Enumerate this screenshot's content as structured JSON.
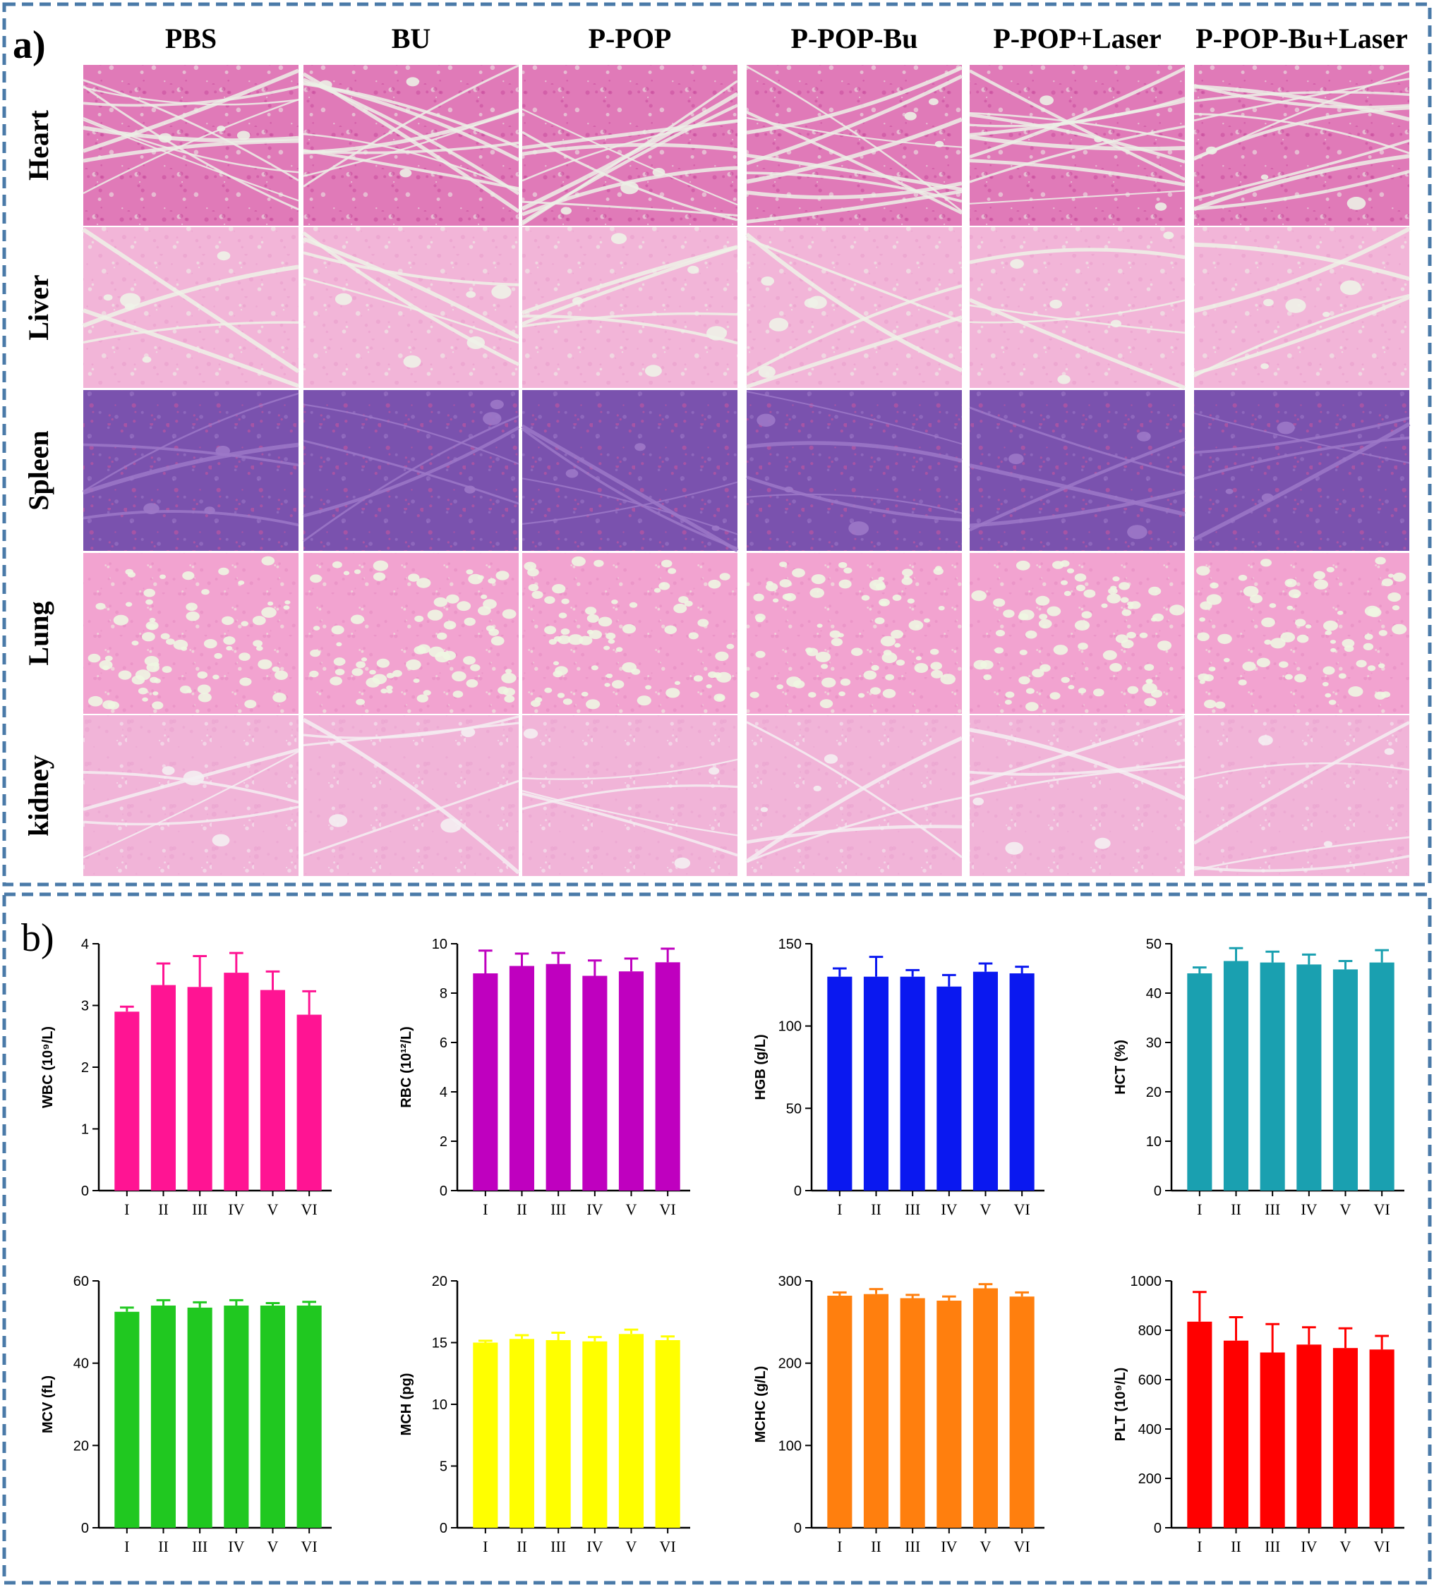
{
  "panel_a": {
    "label": "a)",
    "columns": [
      "PBS",
      "BU",
      "P-POP",
      "P-POP-Bu",
      "P-POP+Laser",
      "P-POP-Bu+Laser"
    ],
    "rows": [
      "Heart",
      "Liver",
      "Spleen",
      "Lung",
      "kidney"
    ],
    "tissue_colors": {
      "Heart": {
        "base": "#e07ab8",
        "accent": "#c84a9c",
        "lumen": "#ecf0e6"
      },
      "Liver": {
        "base": "#f2b5d8",
        "accent": "#e99ccc",
        "lumen": "#eef2e8"
      },
      "Spleen": {
        "base": "#7a52ae",
        "accent": "#c9559e",
        "lumen": "#9c78c8"
      },
      "Lung": {
        "base": "#f2a3d0",
        "accent": "#e58ac0",
        "lumen": "#eef6e2"
      },
      "kidney": {
        "base": "#f1b4d8",
        "accent": "#e8a2cf",
        "lumen": "#f4eef2"
      }
    }
  },
  "panel_b": {
    "label": "b)"
  },
  "chart_data": [
    {
      "type": "bar",
      "ylabel": "WBC (10⁹/L)",
      "categories": [
        "I",
        "II",
        "III",
        "IV",
        "V",
        "VI"
      ],
      "values": [
        2.9,
        3.33,
        3.3,
        3.53,
        3.25,
        2.85
      ],
      "errors": [
        0.08,
        0.35,
        0.5,
        0.32,
        0.3,
        0.38
      ],
      "ylim": [
        0,
        4
      ],
      "yticks": [
        0,
        1,
        2,
        3,
        4
      ],
      "color": "#ff1493"
    },
    {
      "type": "bar",
      "ylabel": "RBC (10¹²/L)",
      "categories": [
        "I",
        "II",
        "III",
        "IV",
        "V",
        "VI"
      ],
      "values": [
        8.8,
        9.1,
        9.18,
        8.7,
        8.88,
        9.25
      ],
      "errors": [
        0.92,
        0.5,
        0.45,
        0.62,
        0.52,
        0.55
      ],
      "ylim": [
        0,
        10
      ],
      "yticks": [
        0,
        2,
        4,
        6,
        8,
        10
      ],
      "color": "#bf00bf"
    },
    {
      "type": "bar",
      "ylabel": "HGB (g/L)",
      "categories": [
        "I",
        "II",
        "III",
        "IV",
        "V",
        "VI"
      ],
      "values": [
        130,
        130,
        130,
        124,
        133,
        132
      ],
      "errors": [
        5,
        12,
        4,
        7,
        5,
        4
      ],
      "ylim": [
        0,
        150
      ],
      "yticks": [
        0,
        50,
        100,
        150
      ],
      "color": "#0a18f0"
    },
    {
      "type": "bar",
      "ylabel": "HCT (%)",
      "categories": [
        "I",
        "II",
        "III",
        "IV",
        "V",
        "VI"
      ],
      "values": [
        44,
        46.5,
        46.2,
        45.8,
        44.8,
        46.2
      ],
      "errors": [
        1.2,
        2.6,
        2.2,
        2,
        1.7,
        2.5
      ],
      "ylim": [
        0,
        50
      ],
      "yticks": [
        0,
        10,
        20,
        30,
        40,
        50
      ],
      "color": "#1aa0b0"
    },
    {
      "type": "bar",
      "ylabel": "MCV (fL)",
      "categories": [
        "I",
        "II",
        "III",
        "IV",
        "V",
        "VI"
      ],
      "values": [
        52.5,
        54,
        53.5,
        54,
        54,
        54
      ],
      "errors": [
        1,
        1.3,
        1.3,
        1.3,
        0.6,
        0.9
      ],
      "ylim": [
        0,
        60
      ],
      "yticks": [
        0,
        20,
        40,
        60
      ],
      "color": "#20c820"
    },
    {
      "type": "bar",
      "ylabel": "MCH (pg)",
      "categories": [
        "I",
        "II",
        "III",
        "IV",
        "V",
        "VI"
      ],
      "values": [
        15,
        15.3,
        15.2,
        15.1,
        15.7,
        15.2
      ],
      "errors": [
        0.15,
        0.3,
        0.6,
        0.35,
        0.35,
        0.3
      ],
      "ylim": [
        0,
        20
      ],
      "yticks": [
        0,
        5,
        10,
        15,
        20
      ],
      "color": "#ffff00"
    },
    {
      "type": "bar",
      "ylabel": "MCHC (g/L)",
      "categories": [
        "I",
        "II",
        "III",
        "IV",
        "V",
        "VI"
      ],
      "values": [
        282,
        284,
        279,
        276,
        291,
        281
      ],
      "errors": [
        4,
        6,
        4,
        5,
        5,
        5
      ],
      "ylim": [
        0,
        300
      ],
      "yticks": [
        0,
        100,
        200,
        300
      ],
      "color": "#ff7f0e"
    },
    {
      "type": "bar",
      "ylabel": "PLT (10⁹/L)",
      "categories": [
        "I",
        "II",
        "III",
        "IV",
        "V",
        "VI"
      ],
      "values": [
        835,
        758,
        710,
        742,
        728,
        722
      ],
      "errors": [
        120,
        95,
        115,
        70,
        80,
        55
      ],
      "ylim": [
        0,
        1000
      ],
      "yticks": [
        0,
        200,
        400,
        600,
        800,
        1000
      ],
      "color": "#ff0000"
    }
  ]
}
